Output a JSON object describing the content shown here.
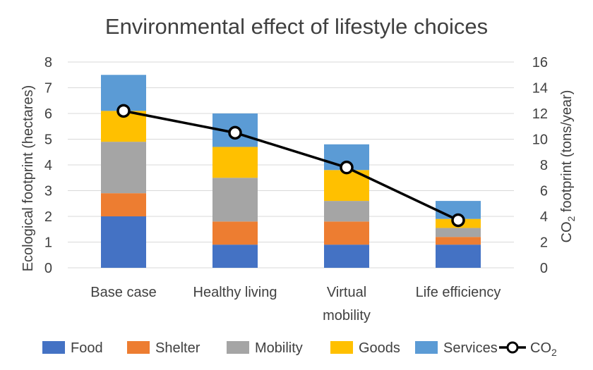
{
  "chart_data": {
    "type": "bar",
    "stacked": true,
    "title": "Environmental effect of lifestyle choices",
    "categories": [
      "Base case",
      "Healthy living",
      "Virtual mobility",
      "Life efficiency"
    ],
    "ylabel": "Ecological footprint (hectares)",
    "y2label": {
      "pre": "CO",
      "sub": "2",
      "post": " footprint (tons/year)"
    },
    "ylim": [
      0,
      8
    ],
    "y2lim": [
      0,
      16
    ],
    "yticks": [
      "0",
      "1",
      "2",
      "3",
      "4",
      "5",
      "6",
      "7",
      "8"
    ],
    "y2ticks": [
      "0",
      "2",
      "4",
      "6",
      "8",
      "10",
      "12",
      "14",
      "16"
    ],
    "grid": true,
    "legend_position": "bottom",
    "series": [
      {
        "name": "Food",
        "color": "#4472c4",
        "values": [
          2.0,
          0.9,
          0.9,
          0.9
        ]
      },
      {
        "name": "Shelter",
        "color": "#ed7d31",
        "values": [
          0.9,
          0.9,
          0.9,
          0.3
        ]
      },
      {
        "name": "Mobility",
        "color": "#a5a5a5",
        "values": [
          2.0,
          1.7,
          0.8,
          0.35
        ]
      },
      {
        "name": "Goods",
        "color": "#ffc000",
        "values": [
          1.2,
          1.2,
          1.2,
          0.35
        ]
      },
      {
        "name": "Services",
        "color": "#5b9bd5",
        "values": [
          1.4,
          1.3,
          1.0,
          0.7
        ]
      }
    ],
    "line_series": {
      "name": "CO",
      "name_sub": "2",
      "axis": "secondary",
      "color": "#000000",
      "marker": "circle-hollow",
      "values": [
        12.2,
        10.5,
        7.8,
        3.7
      ]
    }
  }
}
